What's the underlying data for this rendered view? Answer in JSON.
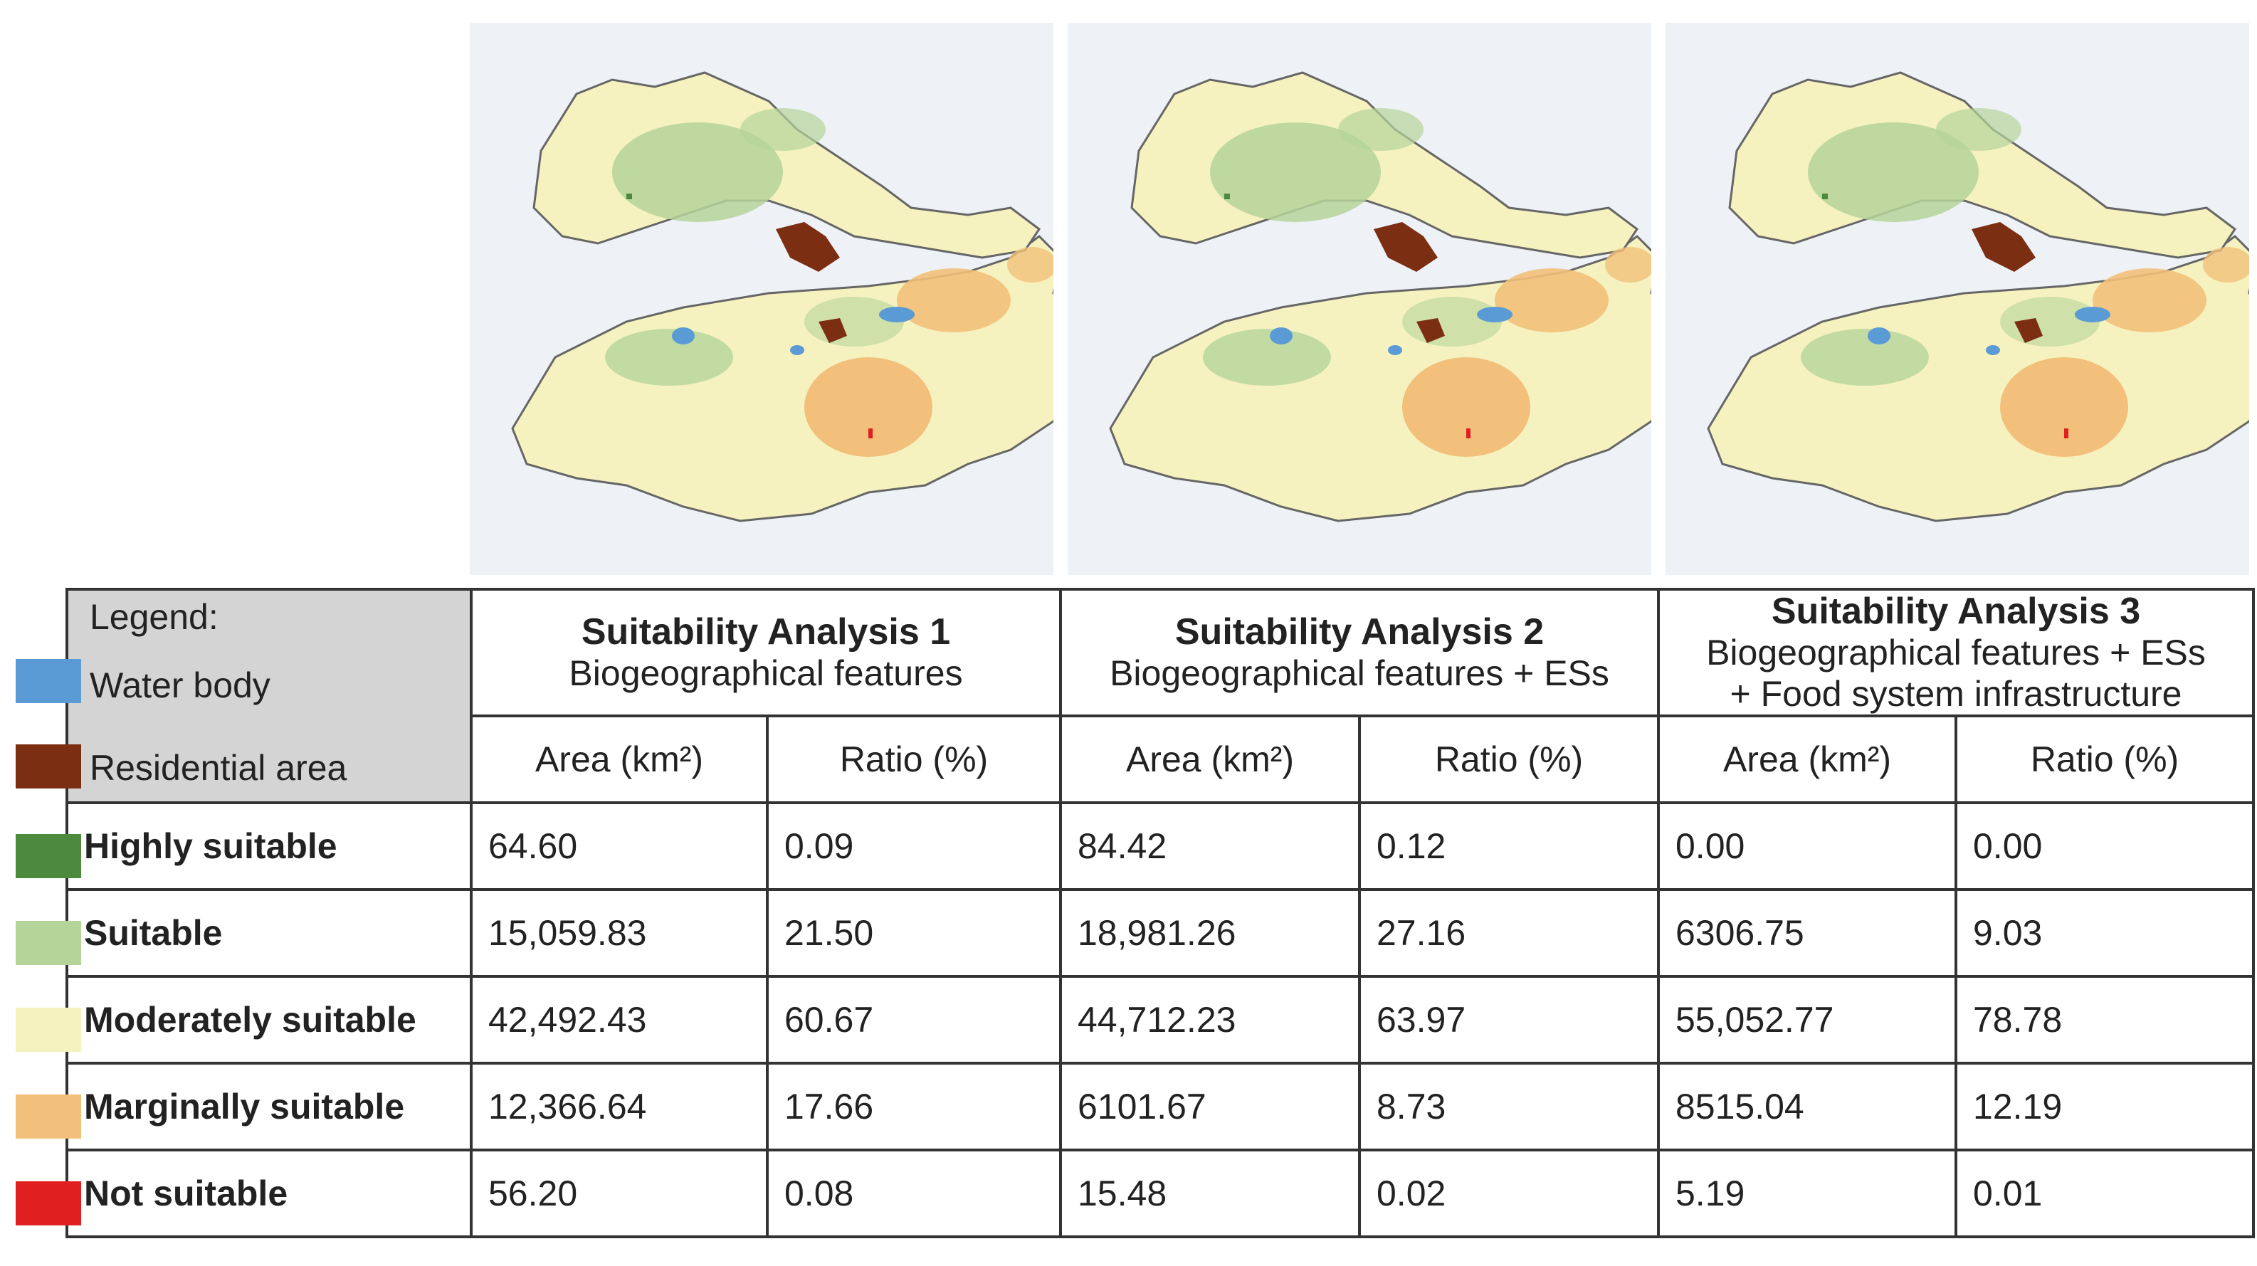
{
  "colors": {
    "water_body": "#5b9bd5",
    "residential_area": "#7b2e12",
    "highly_suitable": "#4e8a3e",
    "suitable": "#b5d49a",
    "moderately_suitable": "#f6f2c0",
    "marginally_suitable": "#f2c07a",
    "not_suitable": "#e02020"
  },
  "legend": {
    "title": "Legend:",
    "water_body": "Water body",
    "residential_area": "Residential area"
  },
  "analyses": [
    {
      "title": "Suitability Analysis 1",
      "subtitle": "Biogeographical features",
      "subtitle2": "",
      "area_header": "Area (km²)",
      "ratio_header": "Ratio (%)"
    },
    {
      "title": "Suitability Analysis 2",
      "subtitle": "Biogeographical features + ESs",
      "subtitle2": "",
      "area_header": "Area (km²)",
      "ratio_header": "Ratio (%)"
    },
    {
      "title": "Suitability Analysis 3",
      "subtitle": "Biogeographical features + ESs",
      "subtitle2": "+ Food system infrastructure",
      "area_header": "Area (km²)",
      "ratio_header": "Ratio (%)"
    }
  ],
  "rows": [
    {
      "class": "Highly suitable",
      "values": [
        "64.60",
        "0.09",
        "84.42",
        "0.12",
        "0.00",
        "0.00"
      ]
    },
    {
      "class": "Suitable",
      "values": [
        "15,059.83",
        "21.50",
        "18,981.26",
        "27.16",
        "6306.75",
        "9.03"
      ]
    },
    {
      "class": "Moderately suitable",
      "values": [
        "42,492.43",
        "60.67",
        "44,712.23",
        "63.97",
        "55,052.77",
        "78.78"
      ]
    },
    {
      "class": "Marginally suitable",
      "values": [
        "12,366.64",
        "17.66",
        "6101.67",
        "8.73",
        "8515.04",
        "12.19"
      ]
    },
    {
      "class": "Not suitable",
      "values": [
        "56.20",
        "0.08",
        "15.48",
        "0.02",
        "5.19",
        "0.01"
      ]
    }
  ]
}
